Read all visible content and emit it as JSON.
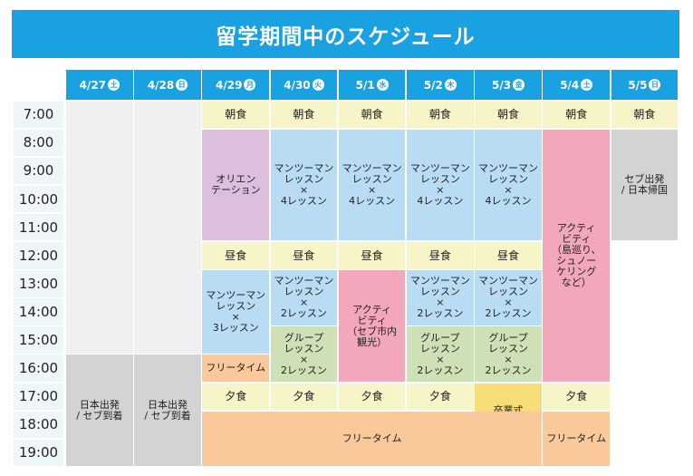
{
  "title": "留学期間中のスケジュール",
  "colors": {
    "header": "#1aa1e2",
    "time": "#eef6f8",
    "meal": "#f7f4c8",
    "empty": "#f0f0f0",
    "gray": "#d3d3d3",
    "purple": "#dbbfdc",
    "lesson": "#b7dcf4",
    "activity": "#f2a7ba",
    "group": "#cde0b6",
    "free": "#f9c99c",
    "graduation": "#f8dc77"
  },
  "days": [
    {
      "date": "4/27",
      "weekday": "土"
    },
    {
      "date": "4/28",
      "weekday": "日"
    },
    {
      "date": "4/29",
      "weekday": "月"
    },
    {
      "date": "4/30",
      "weekday": "火"
    },
    {
      "date": "5/1",
      "weekday": "水"
    },
    {
      "date": "5/2",
      "weekday": "木"
    },
    {
      "date": "5/3",
      "weekday": "金"
    },
    {
      "date": "5/4",
      "weekday": "土"
    },
    {
      "date": "5/5",
      "weekday": "日"
    }
  ],
  "times": [
    "7:00",
    "8:00",
    "9:00",
    "10:00",
    "11:00",
    "12:00",
    "13:00",
    "14:00",
    "15:00",
    "16:00",
    "17:00",
    "18:00",
    "19:00"
  ],
  "blocks": [
    {
      "name": "empty-4-27",
      "col": 0,
      "start": 0,
      "end": 9,
      "cls": "empty",
      "text": ""
    },
    {
      "name": "departure-4-27",
      "col": 0,
      "start": 9,
      "end": 13,
      "cls": "gray",
      "text": "日本出発\n/ セブ到着"
    },
    {
      "name": "empty-4-28",
      "col": 1,
      "start": 0,
      "end": 9,
      "cls": "empty",
      "text": ""
    },
    {
      "name": "departure-4-28",
      "col": 1,
      "start": 9,
      "end": 13,
      "cls": "gray",
      "text": "日本出発\n/ セブ到着"
    },
    {
      "name": "breakfast-4-29",
      "col": 2,
      "start": 0,
      "end": 1,
      "cls": "meal",
      "text": "朝食"
    },
    {
      "name": "orientation-4-29",
      "col": 2,
      "start": 1,
      "end": 5,
      "cls": "purple",
      "text": "オリエン\nテーション"
    },
    {
      "name": "lunch-4-29",
      "col": 2,
      "start": 5,
      "end": 6,
      "cls": "meal",
      "text": "昼食"
    },
    {
      "name": "lesson-pm-4-29",
      "col": 2,
      "start": 6,
      "end": 9,
      "cls": "lblue",
      "text": "マンツーマン\nレッスン\n×\n3レッスン"
    },
    {
      "name": "free-4-29",
      "col": 2,
      "start": 9,
      "end": 10,
      "cls": "orange",
      "text": "フリータイム"
    },
    {
      "name": "dinner-4-29",
      "col": 2,
      "start": 10,
      "end": 11,
      "cls": "meal",
      "text": "夕食"
    },
    {
      "name": "breakfast-4-30",
      "col": 3,
      "start": 0,
      "end": 1,
      "cls": "meal",
      "text": "朝食"
    },
    {
      "name": "lesson-am-4-30",
      "col": 3,
      "start": 1,
      "end": 5,
      "cls": "lblue",
      "text": "マンツーマン\nレッスン\n×\n4レッスン"
    },
    {
      "name": "lunch-4-30",
      "col": 3,
      "start": 5,
      "end": 6,
      "cls": "meal",
      "text": "昼食"
    },
    {
      "name": "lesson-pm-4-30",
      "col": 3,
      "start": 6,
      "end": 8,
      "cls": "lblue",
      "text": "マンツーマン\nレッスン\n×\n2レッスン"
    },
    {
      "name": "group-4-30",
      "col": 3,
      "start": 8,
      "end": 10,
      "cls": "green",
      "text": "グループ\nレッスン\n×\n2レッスン"
    },
    {
      "name": "dinner-4-30",
      "col": 3,
      "start": 10,
      "end": 11,
      "cls": "meal",
      "text": "夕食"
    },
    {
      "name": "breakfast-5-1",
      "col": 4,
      "start": 0,
      "end": 1,
      "cls": "meal",
      "text": "朝食"
    },
    {
      "name": "lesson-am-5-1",
      "col": 4,
      "start": 1,
      "end": 5,
      "cls": "lblue",
      "text": "マンツーマン\nレッスン\n×\n4レッスン"
    },
    {
      "name": "lunch-5-1",
      "col": 4,
      "start": 5,
      "end": 6,
      "cls": "meal",
      "text": "昼食"
    },
    {
      "name": "activity-5-1",
      "col": 4,
      "start": 6,
      "end": 10,
      "cls": "pink",
      "text": "アクティ\nビティ\n（セブ市内\n観光）"
    },
    {
      "name": "dinner-5-1",
      "col": 4,
      "start": 10,
      "end": 11,
      "cls": "meal",
      "text": "夕食"
    },
    {
      "name": "breakfast-5-2",
      "col": 5,
      "start": 0,
      "end": 1,
      "cls": "meal",
      "text": "朝食"
    },
    {
      "name": "lesson-am-5-2",
      "col": 5,
      "start": 1,
      "end": 5,
      "cls": "lblue",
      "text": "マンツーマン\nレッスン\n×\n4レッスン"
    },
    {
      "name": "lunch-5-2",
      "col": 5,
      "start": 5,
      "end": 6,
      "cls": "meal",
      "text": "昼食"
    },
    {
      "name": "lesson-pm-5-2",
      "col": 5,
      "start": 6,
      "end": 8,
      "cls": "lblue",
      "text": "マンツーマン\nレッスン\n×\n2レッスン"
    },
    {
      "name": "group-5-2",
      "col": 5,
      "start": 8,
      "end": 10,
      "cls": "green",
      "text": "グループ\nレッスン\n×\n2レッスン"
    },
    {
      "name": "dinner-5-2",
      "col": 5,
      "start": 10,
      "end": 11,
      "cls": "meal",
      "text": "夕食"
    },
    {
      "name": "breakfast-5-3",
      "col": 6,
      "start": 0,
      "end": 1,
      "cls": "meal",
      "text": "朝食"
    },
    {
      "name": "lesson-am-5-3",
      "col": 6,
      "start": 1,
      "end": 5,
      "cls": "lblue",
      "text": "マンツーマン\nレッスン\n×\n4レッスン"
    },
    {
      "name": "lunch-5-3",
      "col": 6,
      "start": 5,
      "end": 6,
      "cls": "meal",
      "text": "昼食"
    },
    {
      "name": "lesson-pm-5-3",
      "col": 6,
      "start": 6,
      "end": 8,
      "cls": "lblue",
      "text": "マンツーマン\nレッスン\n×\n2レッスン"
    },
    {
      "name": "group-5-3",
      "col": 6,
      "start": 8,
      "end": 10,
      "cls": "green",
      "text": "グループ\nレッスン\n×\n2レッスン"
    },
    {
      "name": "graduation-5-3",
      "col": 6,
      "start": 10,
      "end": 12,
      "cls": "yellow",
      "text": "卒業式"
    },
    {
      "name": "free-5-3",
      "col": 6,
      "start": 12,
      "end": 13,
      "cls": "orange",
      "text": "フリータイム"
    },
    {
      "name": "breakfast-5-4",
      "col": 7,
      "start": 0,
      "end": 1,
      "cls": "meal",
      "text": "朝食"
    },
    {
      "name": "activity-5-4",
      "col": 7,
      "start": 1,
      "end": 10,
      "cls": "pink",
      "text": "アクティ\nビティ\n（島巡り、\nシュノー\nケリング\nなど）"
    },
    {
      "name": "dinner-5-4",
      "col": 7,
      "start": 10,
      "end": 11,
      "cls": "meal",
      "text": "夕食"
    },
    {
      "name": "free-5-4",
      "col": 7,
      "start": 11,
      "end": 13,
      "cls": "orange",
      "text": "フリータイム"
    },
    {
      "name": "breakfast-5-5",
      "col": 8,
      "start": 0,
      "end": 1,
      "cls": "meal",
      "text": "朝食"
    },
    {
      "name": "return-5-5",
      "col": 8,
      "start": 1,
      "end": 5,
      "cls": "gray",
      "text": "セブ出発\n/ 日本帰国"
    },
    {
      "name": "blank-5-5",
      "col": 8,
      "start": 5,
      "end": 13,
      "cls": "white",
      "text": ""
    },
    {
      "name": "free-evening",
      "col": 2,
      "colEnd": 6,
      "start": 11,
      "end": 13,
      "cls": "orange",
      "text": "フリータイム"
    }
  ]
}
